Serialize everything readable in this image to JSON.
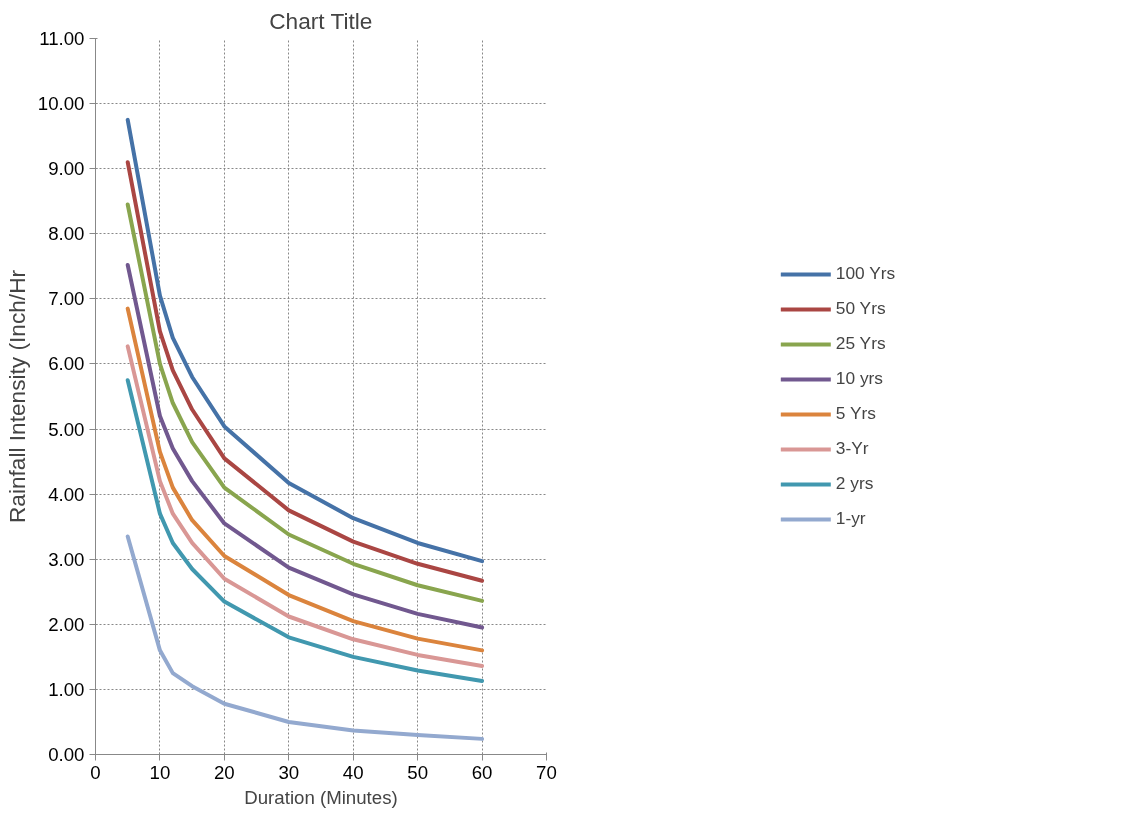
{
  "chart_data": {
    "type": "line",
    "title": "Chart Title",
    "xlabel": "Duration (Minutes)",
    "ylabel": "Rainfall Intensity (Inch/Hr",
    "x": [
      5,
      10,
      12,
      15,
      20,
      30,
      40,
      50,
      60
    ],
    "series": [
      {
        "name": "100 Yrs",
        "color": "#4572a7",
        "values": [
          9.75,
          7.05,
          6.4,
          5.8,
          5.04,
          4.17,
          3.63,
          3.25,
          2.97
        ]
      },
      {
        "name": "50 Yrs",
        "color": "#aa4643",
        "values": [
          9.1,
          6.5,
          5.9,
          5.3,
          4.55,
          3.75,
          3.27,
          2.93,
          2.67
        ]
      },
      {
        "name": "25 Yrs",
        "color": "#89a54e",
        "values": [
          8.45,
          6.0,
          5.4,
          4.8,
          4.1,
          3.38,
          2.93,
          2.6,
          2.36
        ]
      },
      {
        "name": "10 yrs",
        "color": "#71588f",
        "values": [
          7.52,
          5.2,
          4.7,
          4.2,
          3.55,
          2.87,
          2.46,
          2.16,
          1.95
        ]
      },
      {
        "name": "5 Yrs",
        "color": "#db843d",
        "values": [
          6.85,
          4.65,
          4.1,
          3.6,
          3.05,
          2.45,
          2.05,
          1.78,
          1.6
        ]
      },
      {
        "name": "3-Yr",
        "color": "#d99795",
        "values": [
          6.27,
          4.2,
          3.7,
          3.25,
          2.7,
          2.12,
          1.77,
          1.53,
          1.36
        ]
      },
      {
        "name": "2 yrs",
        "color": "#4198af",
        "values": [
          5.75,
          3.7,
          3.25,
          2.85,
          2.35,
          1.8,
          1.5,
          1.29,
          1.13
        ]
      },
      {
        "name": "1-yr",
        "color": "#93a9cf",
        "values": [
          3.35,
          1.6,
          1.25,
          1.05,
          0.78,
          0.5,
          0.37,
          0.3,
          0.24
        ]
      }
    ],
    "xlim": [
      0,
      70
    ],
    "xticks": [
      0,
      10,
      20,
      30,
      40,
      50,
      60,
      70
    ],
    "ylim": [
      0,
      11
    ],
    "yticks": [
      {
        "value": 0,
        "label": "0.00"
      },
      {
        "value": 1,
        "label": "1.00"
      },
      {
        "value": 2,
        "label": "2.00"
      },
      {
        "value": 3,
        "label": "3.00"
      },
      {
        "value": 4,
        "label": "4.00"
      },
      {
        "value": 5,
        "label": "5.00"
      },
      {
        "value": 6,
        "label": "6.00"
      },
      {
        "value": 7,
        "label": "7.00"
      },
      {
        "value": 8,
        "label": "8.00"
      },
      {
        "value": 9,
        "label": "9.00"
      },
      {
        "value": 10,
        "label": "10.00"
      },
      {
        "value": 11,
        "label": "11.00"
      }
    ],
    "grid": true,
    "legend": "right",
    "marker": "none",
    "line_style": "solid"
  }
}
